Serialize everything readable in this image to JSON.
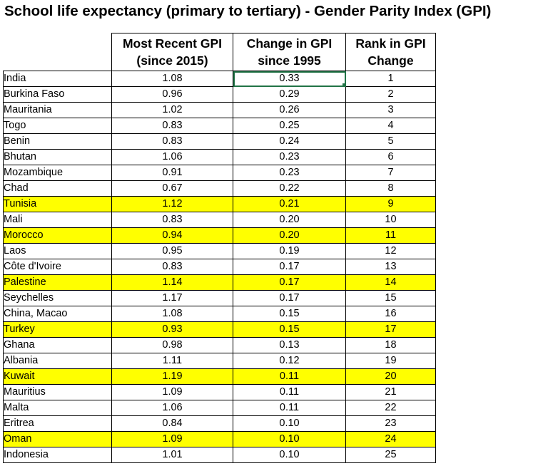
{
  "title": "School life expectancy (primary to tertiary) - Gender Parity Index (GPI)",
  "headers": {
    "gpi_line1": "Most Recent GPI",
    "gpi_line2": "(since 2015)",
    "change_line1": "Change in GPI",
    "change_line2": "since 1995",
    "rank_line1": "Rank in GPI",
    "rank_line2": "Change"
  },
  "colors": {
    "highlight": "#ffff00",
    "selection": "#217346"
  },
  "rows": [
    {
      "country": "India",
      "gpi": "1.08",
      "change": "0.33",
      "rank": "1",
      "highlight": false
    },
    {
      "country": "Burkina Faso",
      "gpi": "0.96",
      "change": "0.29",
      "rank": "2",
      "highlight": false
    },
    {
      "country": "Mauritania",
      "gpi": "1.02",
      "change": "0.26",
      "rank": "3",
      "highlight": false
    },
    {
      "country": "Togo",
      "gpi": "0.83",
      "change": "0.25",
      "rank": "4",
      "highlight": false
    },
    {
      "country": "Benin",
      "gpi": "0.83",
      "change": "0.24",
      "rank": "5",
      "highlight": false
    },
    {
      "country": "Bhutan",
      "gpi": "1.06",
      "change": "0.23",
      "rank": "6",
      "highlight": false
    },
    {
      "country": "Mozambique",
      "gpi": "0.91",
      "change": "0.23",
      "rank": "7",
      "highlight": false
    },
    {
      "country": "Chad",
      "gpi": "0.67",
      "change": "0.22",
      "rank": "8",
      "highlight": false
    },
    {
      "country": "Tunisia",
      "gpi": "1.12",
      "change": "0.21",
      "rank": "9",
      "highlight": true
    },
    {
      "country": "Mali",
      "gpi": "0.83",
      "change": "0.20",
      "rank": "10",
      "highlight": false
    },
    {
      "country": "Morocco",
      "gpi": "0.94",
      "change": "0.20",
      "rank": "11",
      "highlight": true
    },
    {
      "country": "Laos",
      "gpi": "0.95",
      "change": "0.19",
      "rank": "12",
      "highlight": false
    },
    {
      "country": "Côte d'Ivoire",
      "gpi": "0.83",
      "change": "0.17",
      "rank": "13",
      "highlight": false
    },
    {
      "country": "Palestine",
      "gpi": "1.14",
      "change": "0.17",
      "rank": "14",
      "highlight": true
    },
    {
      "country": "Seychelles",
      "gpi": "1.17",
      "change": "0.17",
      "rank": "15",
      "highlight": false
    },
    {
      "country": "China, Macao",
      "gpi": "1.08",
      "change": "0.15",
      "rank": "16",
      "highlight": false
    },
    {
      "country": "Turkey",
      "gpi": "0.93",
      "change": "0.15",
      "rank": "17",
      "highlight": true
    },
    {
      "country": "Ghana",
      "gpi": "0.98",
      "change": "0.13",
      "rank": "18",
      "highlight": false
    },
    {
      "country": "Albania",
      "gpi": "1.11",
      "change": "0.12",
      "rank": "19",
      "highlight": false
    },
    {
      "country": "Kuwait",
      "gpi": "1.19",
      "change": "0.11",
      "rank": "20",
      "highlight": true
    },
    {
      "country": "Mauritius",
      "gpi": "1.09",
      "change": "0.11",
      "rank": "21",
      "highlight": false
    },
    {
      "country": "Malta",
      "gpi": "1.06",
      "change": "0.11",
      "rank": "22",
      "highlight": false
    },
    {
      "country": "Eritrea",
      "gpi": "0.84",
      "change": "0.10",
      "rank": "23",
      "highlight": false
    },
    {
      "country": "Oman",
      "gpi": "1.09",
      "change": "0.10",
      "rank": "24",
      "highlight": true
    },
    {
      "country": "Indonesia",
      "gpi": "1.01",
      "change": "0.10",
      "rank": "25",
      "highlight": false
    }
  ]
}
